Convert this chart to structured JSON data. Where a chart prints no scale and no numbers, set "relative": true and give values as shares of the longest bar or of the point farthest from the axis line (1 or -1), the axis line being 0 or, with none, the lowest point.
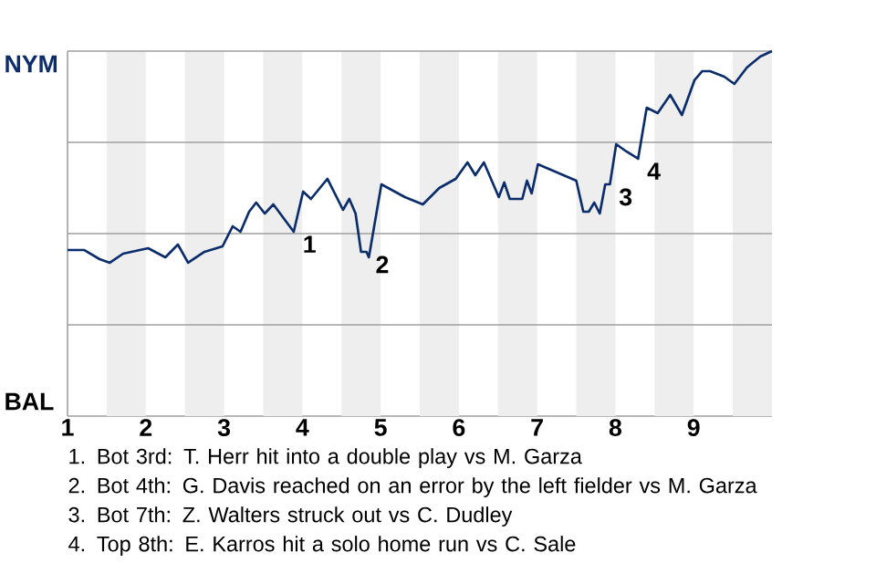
{
  "chart_data": {
    "type": "line",
    "relative": true,
    "ref_lines": [
      {
        "axis": "y",
        "value": 1,
        "color": "#9f9f9f"
      },
      {
        "axis": "y",
        "value": 0.5,
        "color": "#9f9f9f"
      },
      {
        "axis": "y",
        "value": 0,
        "color": "#9f9f9f"
      },
      {
        "axis": "y",
        "value": -0.5,
        "color": "#9f9f9f"
      }
    ],
    "x": [
      1.0,
      1.21,
      1.41,
      1.54,
      1.71,
      2.03,
      2.25,
      2.41,
      2.54,
      2.75,
      2.98,
      3.11,
      3.21,
      3.32,
      3.41,
      3.52,
      3.63,
      3.89,
      4.01,
      4.11,
      4.32,
      4.52,
      4.6,
      4.68,
      4.75,
      4.82,
      4.85,
      5.01,
      5.31,
      5.54,
      5.75,
      5.96,
      6.11,
      6.21,
      6.32,
      6.51,
      6.58,
      6.65,
      6.81,
      6.87,
      6.93,
      7.01,
      7.5,
      7.59,
      7.66,
      7.73,
      7.8,
      7.87,
      7.93,
      8.01,
      8.14,
      8.29,
      8.4,
      8.54,
      8.7,
      8.85,
      9.01,
      9.11,
      9.21,
      9.39,
      9.52,
      9.68,
      9.85,
      10.0
    ],
    "xlim": [
      1,
      10
    ],
    "xticks": [
      {
        "value": 1,
        "label": "1"
      },
      {
        "value": 2,
        "label": "2"
      },
      {
        "value": 3,
        "label": "3"
      },
      {
        "value": 4,
        "label": "4"
      },
      {
        "value": 5,
        "label": "5"
      },
      {
        "value": 6,
        "label": "6"
      },
      {
        "value": 7,
        "label": "7"
      },
      {
        "value": 8,
        "label": "8"
      },
      {
        "value": 9,
        "label": "9"
      }
    ],
    "series": [
      {
        "color": "#0b2d6b",
        "values": [
          -0.09,
          -0.09,
          -0.14,
          -0.16,
          -0.11,
          -0.08,
          -0.13,
          -0.06,
          -0.16,
          -0.1,
          -0.07,
          0.04,
          0.01,
          0.12,
          0.17,
          0.11,
          0.16,
          0.01,
          0.23,
          0.19,
          0.3,
          0.13,
          0.19,
          0.11,
          -0.1,
          -0.1,
          -0.13,
          0.27,
          0.2,
          0.16,
          0.25,
          0.3,
          0.39,
          0.32,
          0.39,
          0.2,
          0.28,
          0.19,
          0.19,
          0.29,
          0.22,
          0.38,
          0.29,
          0.12,
          0.12,
          0.17,
          0.11,
          0.27,
          0.27,
          0.49,
          0.45,
          0.41,
          0.69,
          0.66,
          0.76,
          0.65,
          0.84,
          0.89,
          0.89,
          0.86,
          0.82,
          0.91,
          0.97,
          1.0
        ]
      }
    ],
    "bands": [
      {
        "axis": "x",
        "from": 1.5,
        "to": 2,
        "color": "#eeeeee"
      },
      {
        "axis": "x",
        "from": 2.5,
        "to": 3,
        "color": "#eeeeee"
      },
      {
        "axis": "x",
        "from": 3.5,
        "to": 4,
        "color": "#eeeeee"
      },
      {
        "axis": "x",
        "from": 4.5,
        "to": 5,
        "color": "#eeeeee"
      },
      {
        "axis": "x",
        "from": 5.5,
        "to": 6,
        "color": "#eeeeee"
      },
      {
        "axis": "x",
        "from": 6.5,
        "to": 7,
        "color": "#eeeeee"
      },
      {
        "axis": "x",
        "from": 7.5,
        "to": 8,
        "color": "#eeeeee"
      },
      {
        "axis": "x",
        "from": 8.5,
        "to": 9,
        "color": "#eeeeee"
      },
      {
        "axis": "x",
        "from": 9.5,
        "to": 10,
        "color": "#eeeeee"
      }
    ],
    "annotations": [
      "NYM",
      "BAL",
      {
        "text": "1",
        "x": 3.89,
        "y": 0.01
      },
      {
        "text": "2",
        "x": 4.82,
        "y": -0.1
      },
      {
        "text": "3",
        "x": 7.93,
        "y": 0.27
      },
      {
        "text": "4",
        "x": 8.29,
        "y": 0.41
      },
      "1. Bot 3rd: T. Herr hit into a double play vs M. Garza",
      "2. Bot 4th: G. Davis reached on an error by the left fielder vs M. Garza",
      "3. Bot 7th: Z. Walters struck out vs C. Dudley",
      "4. Top 8th: E. Karros hit a solo home run vs C. Sale"
    ]
  }
}
